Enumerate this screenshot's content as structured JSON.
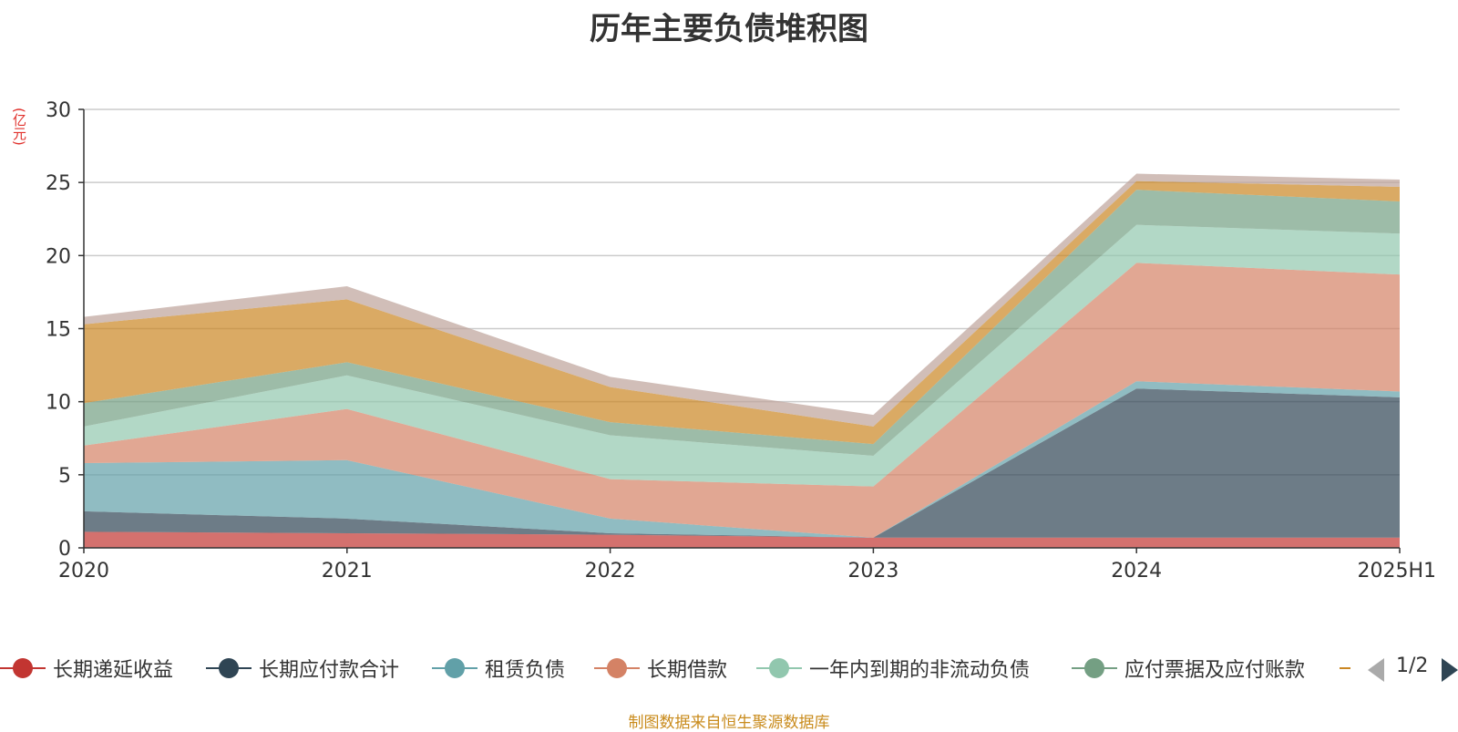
{
  "chart_data": {
    "type": "area",
    "stacked": true,
    "title": "历年主要负债堆积图",
    "y_unit": "(亿元)",
    "ylim": [
      0,
      30
    ],
    "yticks": [
      0,
      5,
      10,
      15,
      20,
      25,
      30
    ],
    "grid": true,
    "categories": [
      "2020",
      "2021",
      "2022",
      "2023",
      "2024",
      "2025H1"
    ],
    "series": [
      {
        "name": "长期递延收益",
        "color": "#c23531",
        "values": [
          1.1,
          1.0,
          0.9,
          0.7,
          0.7,
          0.7
        ]
      },
      {
        "name": "长期应付款合计",
        "color": "#2f4554",
        "values": [
          1.4,
          1.0,
          0.1,
          0.0,
          10.2,
          9.6
        ]
      },
      {
        "name": "租赁负债",
        "color": "#61a0a8",
        "values": [
          3.3,
          4.0,
          1.0,
          0.0,
          0.5,
          0.4
        ]
      },
      {
        "name": "长期借款",
        "color": "#d48265",
        "values": [
          1.2,
          3.5,
          2.7,
          3.5,
          8.1,
          8.0
        ]
      },
      {
        "name": "一年内到期的非流动负债",
        "color": "#91c7ae",
        "values": [
          1.3,
          2.3,
          3.0,
          2.1,
          2.6,
          2.8
        ]
      },
      {
        "name": "应付票据及应付账款",
        "color": "#749f83",
        "values": [
          1.6,
          0.9,
          0.9,
          0.8,
          2.4,
          2.2
        ]
      },
      {
        "name": "",
        "color": "#ca8622",
        "values": [
          5.4,
          4.3,
          2.4,
          1.2,
          0.6,
          1.0
        ]
      },
      {
        "name": "",
        "color": "#bda29a",
        "values": [
          0.5,
          0.9,
          0.7,
          0.8,
          0.5,
          0.5
        ]
      }
    ]
  },
  "legend": {
    "items": [
      {
        "label": "长期递延收益",
        "color": "#c23531"
      },
      {
        "label": "长期应付款合计",
        "color": "#2f4554"
      },
      {
        "label": "租赁负债",
        "color": "#61a0a8"
      },
      {
        "label": "长期借款",
        "color": "#d48265"
      },
      {
        "label": "一年内到期的非流动负债",
        "color": "#91c7ae"
      },
      {
        "label": "应付票据及应付账款",
        "color": "#749f83"
      }
    ],
    "partial_color": "#ca8622",
    "page_indicator": "1/2"
  },
  "source_note": "制图数据来自恒生聚源数据库"
}
